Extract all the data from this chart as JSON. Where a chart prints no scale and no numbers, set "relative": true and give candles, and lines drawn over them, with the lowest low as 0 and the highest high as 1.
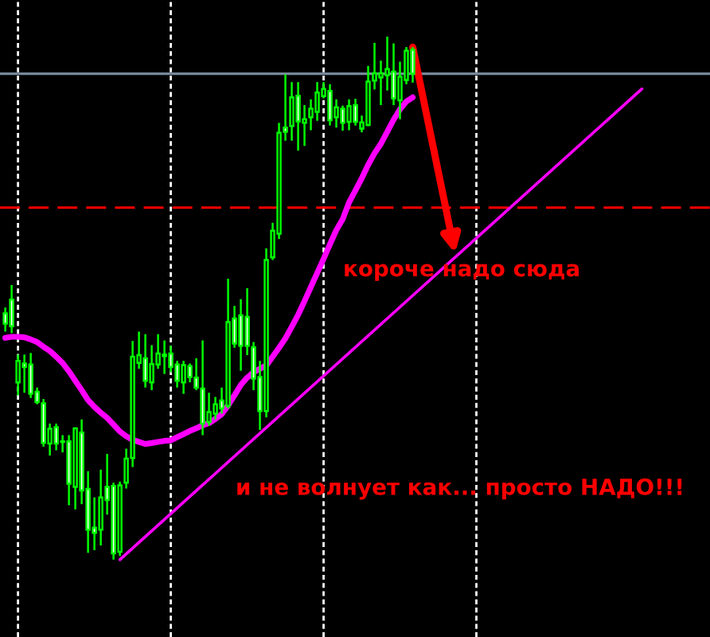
{
  "chart_data": {
    "type": "candlestick",
    "relative": true,
    "grid": "x",
    "categories": [
      null,
      null,
      null,
      null,
      null,
      null,
      null,
      null,
      null,
      null,
      null,
      null,
      null,
      null,
      null,
      null,
      null,
      null,
      null,
      null,
      null,
      null,
      null,
      null,
      null,
      null,
      null,
      null,
      null,
      null,
      null,
      null,
      null,
      null,
      null,
      null,
      null,
      null,
      null,
      null,
      null,
      null,
      null,
      null,
      null,
      null,
      null,
      null,
      null,
      null,
      null,
      null,
      null,
      null,
      null,
      null,
      null,
      null,
      null,
      null,
      null,
      null,
      null,
      null,
      null,
      null,
      null,
      null,
      null,
      null,
      null,
      null,
      null,
      null,
      null,
      null,
      null,
      null,
      null,
      null,
      null,
      null,
      null,
      null,
      null,
      null,
      null,
      null,
      null,
      null,
      null,
      null,
      null,
      null,
      null,
      null,
      null,
      null,
      null,
      null,
      null,
      null,
      null,
      null,
      null,
      null,
      null,
      null,
      null,
      null,
      null
    ],
    "series": [
      {
        "color": "#00ff00",
        "ohlc": [
          [
            0.471,
            0.482,
            0.436,
            0.451
          ],
          [
            0.497,
            0.525,
            0.433,
            0.446
          ],
          [
            0.339,
            0.392,
            0.314,
            0.38
          ],
          [
            0.375,
            0.392,
            0.319,
            0.368
          ],
          [
            0.373,
            0.395,
            0.309,
            0.317
          ],
          [
            0.321,
            0.329,
            0.297,
            0.301
          ],
          [
            0.299,
            0.307,
            0.216,
            0.223
          ],
          [
            0.222,
            0.26,
            0.199,
            0.25
          ],
          [
            0.253,
            0.26,
            0.209,
            0.222
          ],
          [
            0.226,
            0.238,
            0.205,
            0.225
          ],
          [
            0.226,
            0.238,
            0.104,
            0.145
          ],
          [
            0.139,
            0.253,
            0.096,
            0.251
          ],
          [
            0.243,
            0.268,
            0.106,
            0.132
          ],
          [
            0.135,
            0.169,
            0.013,
            0.057
          ],
          [
            0.061,
            0.119,
            0.018,
            0.051
          ],
          [
            0.057,
            0.172,
            0.027,
            0.119
          ],
          [
            0.139,
            0.202,
            0.086,
            0.114
          ],
          [
            0.141,
            0.147,
            0.0,
            0.012
          ],
          [
            0.015,
            0.149,
            0.007,
            0.142
          ],
          [
            0.147,
            0.212,
            0.136,
            0.193
          ],
          [
            0.194,
            0.418,
            0.177,
            0.388
          ],
          [
            0.376,
            0.436,
            0.365,
            0.391
          ],
          [
            0.385,
            0.431,
            0.329,
            0.342
          ],
          [
            0.339,
            0.41,
            0.324,
            0.374
          ],
          [
            0.373,
            0.431,
            0.365,
            0.394
          ],
          [
            0.389,
            0.419,
            0.355,
            0.392
          ],
          [
            0.394,
            0.409,
            0.358,
            0.368
          ],
          [
            0.373,
            0.38,
            0.329,
            0.342
          ],
          [
            0.339,
            0.38,
            0.317,
            0.372
          ],
          [
            0.37,
            0.375,
            0.339,
            0.349
          ],
          [
            0.348,
            0.385,
            0.324,
            0.329
          ],
          [
            0.327,
            0.419,
            0.238,
            0.26
          ],
          [
            0.263,
            0.319,
            0.256,
            0.282
          ],
          [
            0.279,
            0.311,
            0.268,
            0.297
          ],
          [
            0.304,
            0.329,
            0.279,
            0.289
          ],
          [
            0.294,
            0.537,
            0.289,
            0.454
          ],
          [
            0.461,
            0.485,
            0.405,
            0.413
          ],
          [
            0.467,
            0.498,
            0.361,
            0.409
          ],
          [
            0.464,
            0.519,
            0.391,
            0.409
          ],
          [
            0.406,
            0.416,
            0.324,
            0.346
          ],
          [
            0.349,
            0.38,
            0.248,
            0.284
          ],
          [
            0.284,
            0.595,
            0.272,
            0.573
          ],
          [
            0.578,
            0.644,
            0.573,
            0.629
          ],
          [
            0.623,
            0.835,
            0.613,
            0.816
          ],
          [
            0.826,
            0.928,
            0.801,
            0.818
          ],
          [
            0.829,
            0.913,
            0.801,
            0.884
          ],
          [
            0.887,
            0.913,
            0.782,
            0.838
          ],
          [
            0.835,
            0.869,
            0.791,
            0.842
          ],
          [
            0.846,
            0.88,
            0.821,
            0.862
          ],
          [
            0.856,
            0.913,
            0.839,
            0.893
          ],
          [
            0.886,
            0.913,
            0.882,
            0.9
          ],
          [
            0.896,
            0.909,
            0.83,
            0.84
          ],
          [
            0.846,
            0.88,
            0.826,
            0.865
          ],
          [
            0.862,
            0.868,
            0.82,
            0.835
          ],
          [
            0.837,
            0.88,
            0.821,
            0.867
          ],
          [
            0.869,
            0.881,
            0.83,
            0.837
          ],
          [
            0.824,
            0.849,
            0.817,
            0.836
          ],
          [
            0.831,
            0.944,
            0.829,
            0.914
          ],
          [
            0.916,
            0.988,
            0.899,
            0.93
          ],
          [
            0.922,
            0.954,
            0.869,
            0.93
          ],
          [
            0.926,
            1.0,
            0.897,
            0.938
          ],
          [
            0.933,
            0.987,
            0.869,
            0.882
          ],
          [
            0.878,
            0.952,
            0.842,
            0.923
          ],
          [
            0.917,
            0.98,
            0.909,
            0.973
          ],
          [
            0.975,
            0.98,
            0.912,
            0.929
          ],
          null,
          null,
          null,
          null,
          null,
          null,
          null,
          null,
          null,
          null,
          null,
          null,
          null,
          null,
          null,
          null,
          null,
          null,
          null,
          null,
          null,
          null,
          null,
          null,
          null,
          null,
          null,
          null,
          null,
          null,
          null,
          null,
          null,
          null,
          null,
          null,
          null,
          null,
          null,
          null,
          null,
          null,
          null,
          null,
          null,
          null
        ],
        "colors": [
          "#ffffff",
          "#ffffff",
          "#000000",
          "#ffffff",
          "#ffffff",
          "#ffffff",
          "#ffffff",
          "#000000",
          "#ffffff",
          "#ffffff",
          "#ffffff",
          "#000000",
          "#ffffff",
          "#ffffff",
          "#ffffff",
          "#000000",
          "#ffffff",
          "#ffffff",
          "#000000",
          "#000000",
          "#000000",
          "#000000",
          "#ffffff",
          "#000000",
          "#000000",
          "#000000",
          "#ffffff",
          "#ffffff",
          "#000000",
          "#ffffff",
          "#ffffff",
          "#ffffff",
          "#000000",
          "#000000",
          "#ffffff",
          "#000000",
          "#ffffff",
          "#ffffff",
          "#ffffff",
          "#ffffff",
          "#ffffff",
          "#000000",
          "#000000",
          "#000000",
          "#ffffff",
          "#000000",
          "#ffffff",
          "#000000",
          "#000000",
          "#000000",
          "#000000",
          "#ffffff",
          "#000000",
          "#ffffff",
          "#000000",
          "#ffffff",
          "#000000",
          "#000000",
          "#000000",
          "#000000",
          "#000000",
          "#ffffff",
          "#000000",
          "#000000",
          "#ffffff",
          null,
          null,
          null,
          null,
          null,
          null,
          null,
          null,
          null,
          null,
          null,
          null,
          null,
          null,
          null,
          null,
          null,
          null,
          null,
          null,
          null,
          null,
          null,
          null,
          null,
          null,
          null,
          null,
          null,
          null,
          null,
          null,
          null,
          null,
          null,
          null,
          null,
          null,
          null,
          null,
          null,
          null,
          null,
          null,
          null,
          null
        ]
      },
      {
        "type": "line",
        "color": "#ff00ff",
        "values": [
          0.424,
          0.426,
          0.426,
          0.425,
          0.421,
          0.416,
          0.407,
          0.399,
          0.388,
          0.376,
          0.36,
          0.342,
          0.324,
          0.305,
          0.292,
          0.281,
          0.271,
          0.258,
          0.245,
          0.236,
          0.229,
          0.225,
          0.221,
          0.223,
          0.225,
          0.227,
          0.228,
          0.234,
          0.24,
          0.246,
          0.251,
          0.257,
          0.261,
          0.269,
          0.278,
          0.295,
          0.314,
          0.334,
          0.348,
          0.358,
          0.365,
          0.371,
          0.388,
          0.405,
          0.423,
          0.445,
          0.468,
          0.494,
          0.521,
          0.548,
          0.575,
          0.603,
          0.63,
          0.651,
          0.683,
          0.706,
          0.729,
          0.755,
          0.777,
          0.795,
          0.818,
          0.841,
          0.861,
          0.876,
          0.884,
          null,
          null,
          null,
          null,
          null,
          null,
          null,
          null,
          null,
          null,
          null,
          null,
          null,
          null,
          null,
          null,
          null,
          null,
          null,
          null,
          null,
          null,
          null,
          null,
          null,
          null,
          null,
          null,
          null,
          null,
          null,
          null,
          null,
          null,
          null,
          null,
          null,
          null,
          null,
          null,
          null,
          null,
          null,
          null,
          null,
          null
        ]
      },
      {
        "type": "line",
        "color": "#ff00ff",
        "values": [
          null,
          null,
          null,
          null,
          null,
          null,
          null,
          null,
          null,
          null,
          null,
          null,
          null,
          null,
          null,
          null,
          null,
          null,
          0.0,
          null,
          null,
          null,
          null,
          null,
          null,
          null,
          null,
          null,
          null,
          null,
          null,
          null,
          null,
          null,
          null,
          null,
          null,
          null,
          null,
          null,
          null,
          null,
          null,
          null,
          null,
          null,
          null,
          null,
          null,
          null,
          null,
          null,
          null,
          null,
          null,
          null,
          null,
          null,
          null,
          null,
          null,
          null,
          null,
          null,
          null,
          null,
          null,
          null,
          null,
          null,
          null,
          null,
          null,
          null,
          null,
          null,
          null,
          null,
          null,
          null,
          null,
          null,
          null,
          null,
          null,
          null,
          null,
          null,
          null,
          null,
          null,
          null,
          null,
          null,
          null,
          null,
          null,
          null,
          null,
          null,
          0.9,
          null,
          null,
          null,
          null,
          null,
          null,
          null,
          null,
          null,
          null
        ]
      }
    ],
    "ref_lines": [
      {
        "axis": "y",
        "value": 0.929,
        "color": "#778899",
        "line_style": "solid"
      },
      {
        "axis": "y",
        "value": 0.673,
        "color": "#ff0000",
        "line_style": "dashed"
      }
    ],
    "annotations": [
      {
        "text": "короче надо сюда",
        "y": 0.585
      },
      "и не волнует как... просто НАДО!!!"
    ]
  }
}
